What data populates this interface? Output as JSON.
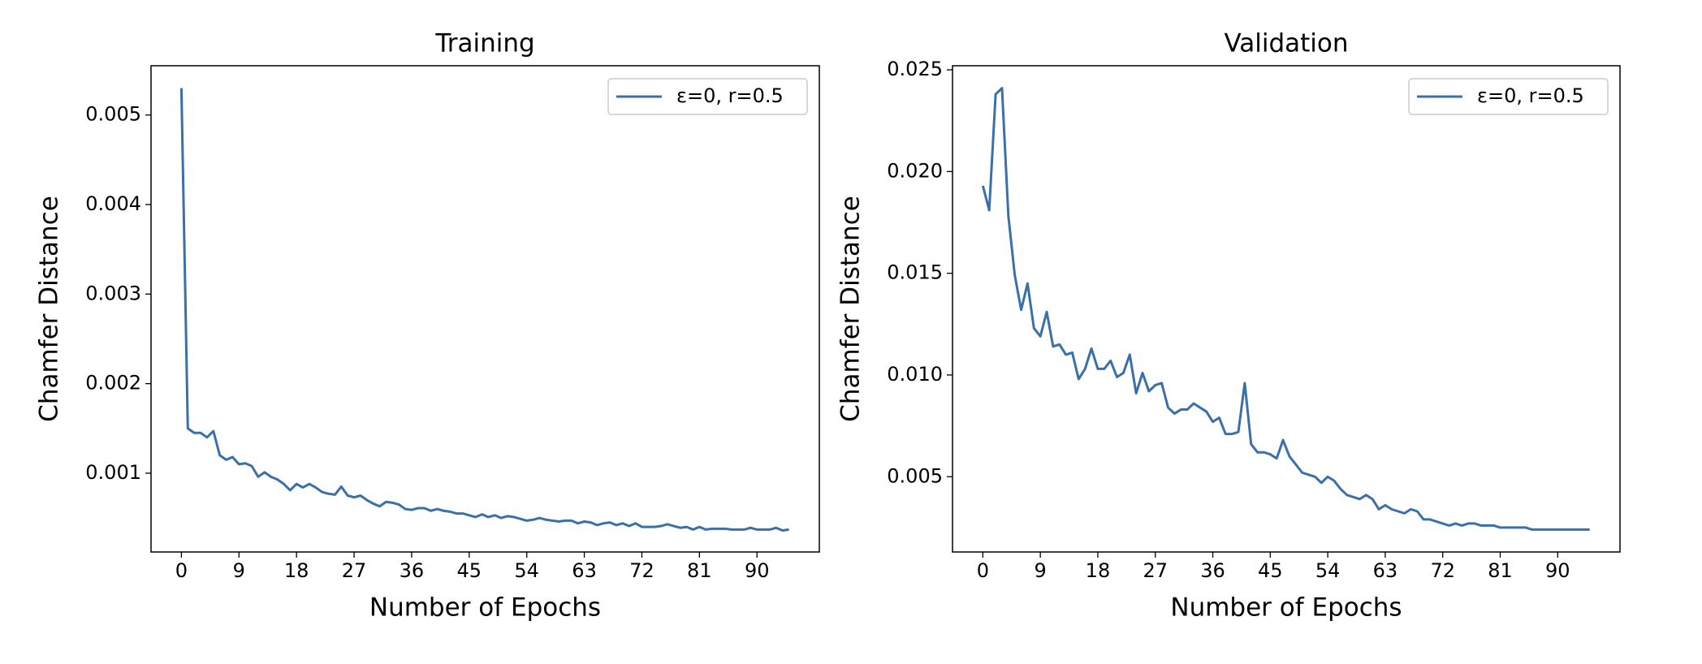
{
  "chart_data": [
    {
      "type": "line",
      "title": "Training",
      "xlabel": "Number of Epochs",
      "ylabel": "Chamfer Distance",
      "legend": "upper right",
      "x": [
        0,
        1,
        2,
        3,
        4,
        5,
        6,
        7,
        8,
        9,
        10,
        11,
        12,
        13,
        14,
        15,
        16,
        17,
        18,
        19,
        20,
        21,
        22,
        23,
        24,
        25,
        26,
        27,
        28,
        29,
        30,
        31,
        32,
        33,
        34,
        35,
        36,
        37,
        38,
        39,
        40,
        41,
        42,
        43,
        44,
        45,
        46,
        47,
        48,
        49,
        50,
        51,
        52,
        53,
        54,
        55,
        56,
        57,
        58,
        59,
        60,
        61,
        62,
        63,
        64,
        65,
        66,
        67,
        68,
        69,
        70,
        71,
        72,
        73,
        74,
        75,
        76,
        77,
        78,
        79,
        80,
        81,
        82,
        83,
        84,
        85,
        86,
        87,
        88,
        89,
        90,
        91,
        92,
        93,
        94,
        95
      ],
      "series": [
        {
          "name": "ε=0, r=0.5",
          "color": "#3a70aa",
          "values": [
            0.0053,
            0.0015,
            0.00145,
            0.00145,
            0.0014,
            0.00147,
            0.0012,
            0.00115,
            0.00118,
            0.0011,
            0.00111,
            0.00108,
            0.00096,
            0.00101,
            0.00096,
            0.00093,
            0.00088,
            0.00081,
            0.00088,
            0.00084,
            0.00088,
            0.00084,
            0.00079,
            0.00077,
            0.00076,
            0.00085,
            0.00075,
            0.00073,
            0.00075,
            0.0007,
            0.00066,
            0.00063,
            0.00068,
            0.00067,
            0.00065,
            0.0006,
            0.00059,
            0.00061,
            0.00061,
            0.00058,
            0.0006,
            0.00058,
            0.00057,
            0.00055,
            0.00055,
            0.00053,
            0.00051,
            0.00054,
            0.00051,
            0.00053,
            0.0005,
            0.00052,
            0.00051,
            0.00049,
            0.00047,
            0.00048,
            0.0005,
            0.00048,
            0.00047,
            0.00046,
            0.00047,
            0.00047,
            0.00044,
            0.00046,
            0.00045,
            0.00042,
            0.00044,
            0.00045,
            0.00042,
            0.00044,
            0.00041,
            0.00044,
            0.0004,
            0.0004,
            0.0004,
            0.00041,
            0.00043,
            0.00041,
            0.00039,
            0.0004,
            0.00037,
            0.0004,
            0.00037,
            0.00038,
            0.00038,
            0.00038,
            0.00037,
            0.00037,
            0.00037,
            0.00039,
            0.00037,
            0.00037,
            0.00037,
            0.00039,
            0.00036,
            0.00037
          ]
        }
      ],
      "xlim": [
        -4.75,
        99.75
      ],
      "xticks": [
        0,
        9,
        18,
        27,
        36,
        45,
        54,
        63,
        72,
        81,
        90
      ],
      "ylim": [
        0.00012,
        0.00555
      ],
      "yticks": [
        0.001,
        0.002,
        0.003,
        0.004,
        0.005
      ]
    },
    {
      "type": "line",
      "title": "Validation",
      "xlabel": "Number of Epochs",
      "ylabel": "Chamfer Distance",
      "legend": "upper right",
      "x": [
        0,
        1,
        2,
        3,
        4,
        5,
        6,
        7,
        8,
        9,
        10,
        11,
        12,
        13,
        14,
        15,
        16,
        17,
        18,
        19,
        20,
        21,
        22,
        23,
        24,
        25,
        26,
        27,
        28,
        29,
        30,
        31,
        32,
        33,
        34,
        35,
        36,
        37,
        38,
        39,
        40,
        41,
        42,
        43,
        44,
        45,
        46,
        47,
        48,
        49,
        50,
        51,
        52,
        53,
        54,
        55,
        56,
        57,
        58,
        59,
        60,
        61,
        62,
        63,
        64,
        65,
        66,
        67,
        68,
        69,
        70,
        71,
        72,
        73,
        74,
        75,
        76,
        77,
        78,
        79,
        80,
        81,
        82,
        83,
        84,
        85,
        86,
        87,
        88,
        89,
        90,
        91,
        92,
        93,
        94,
        95
      ],
      "series": [
        {
          "name": "ε=0, r=0.5",
          "color": "#3a70aa",
          "values": [
            0.0193,
            0.0181,
            0.0238,
            0.0241,
            0.0178,
            0.0149,
            0.0132,
            0.0145,
            0.0123,
            0.0119,
            0.0131,
            0.0114,
            0.0115,
            0.011,
            0.0111,
            0.0098,
            0.0103,
            0.0113,
            0.0103,
            0.0103,
            0.0107,
            0.0099,
            0.0101,
            0.011,
            0.0091,
            0.0101,
            0.0092,
            0.0095,
            0.0096,
            0.0084,
            0.0081,
            0.0083,
            0.0083,
            0.0086,
            0.0084,
            0.0082,
            0.0077,
            0.0079,
            0.0071,
            0.0071,
            0.0072,
            0.0096,
            0.0066,
            0.0062,
            0.0062,
            0.0061,
            0.0059,
            0.0068,
            0.006,
            0.0056,
            0.0052,
            0.0051,
            0.005,
            0.0047,
            0.005,
            0.0048,
            0.0044,
            0.0041,
            0.004,
            0.0039,
            0.0041,
            0.0039,
            0.0034,
            0.0036,
            0.0034,
            0.0033,
            0.0032,
            0.0034,
            0.0033,
            0.0029,
            0.0029,
            0.0028,
            0.0027,
            0.0026,
            0.0027,
            0.0026,
            0.0027,
            0.0027,
            0.0026,
            0.0026,
            0.0026,
            0.0025,
            0.0025,
            0.0025,
            0.0025,
            0.0025,
            0.0024,
            0.0024,
            0.0024,
            0.0024,
            0.0024,
            0.0024,
            0.0024,
            0.0024,
            0.0024,
            0.0024
          ]
        }
      ],
      "xlim": [
        -4.75,
        99.75
      ],
      "xticks": [
        0,
        9,
        18,
        27,
        36,
        45,
        54,
        63,
        72,
        81,
        90
      ],
      "ylim": [
        0.0013,
        0.0252
      ],
      "yticks": [
        0.005,
        {
          "value": 0.01,
          "label": "0.010"
        },
        0.015,
        {
          "value": 0.02,
          "label": "0.020"
        },
        0.025
      ]
    }
  ]
}
